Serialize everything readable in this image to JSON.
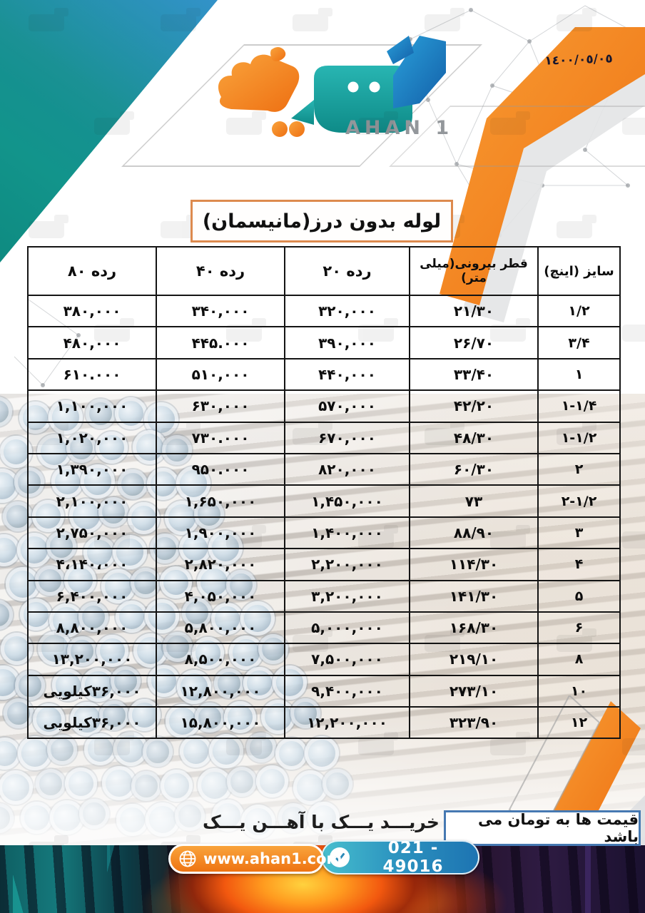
{
  "date": "١٤٠٠/٠٥/٠٥",
  "logo": {
    "brand_fa": "آهن یک",
    "brand_en": "AHAN 1"
  },
  "title": "لوله بدون درز(مانیسمان)",
  "table": {
    "columns": [
      "سایز (اینچ)",
      "قطر بیرونی(میلی متر)",
      "رده ۲۰",
      "رده ۴۰",
      "رده ۸۰"
    ],
    "rows": [
      [
        "۱/۲",
        "۲۱/۳۰",
        "۳۲۰,۰۰۰",
        "۳۴۰,۰۰۰",
        "۳۸۰,۰۰۰"
      ],
      [
        "۳/۴",
        "۲۶/۷۰",
        "۳۹۰,۰۰۰",
        "۴۴۵.۰۰۰",
        "۴۸۰,۰۰۰"
      ],
      [
        "۱",
        "۳۳/۴۰",
        "۴۴۰,۰۰۰",
        "۵۱۰,۰۰۰",
        "۶۱۰.۰۰۰"
      ],
      [
        "۱-۱/۴",
        "۴۲/۲۰",
        "۵۷۰,۰۰۰",
        "۶۳۰,۰۰۰",
        "۱,۱۰۰,۰۰۰"
      ],
      [
        "۱-۱/۲",
        "۴۸/۳۰",
        "۶۷۰,۰۰۰",
        "۷۳۰.۰۰۰",
        "۱,۰۲۰,۰۰۰"
      ],
      [
        "۲",
        "۶۰/۳۰",
        "۸۲۰,۰۰۰",
        "۹۵۰.۰۰۰",
        "۱,۳۹۰,۰۰۰"
      ],
      [
        "۲-۱/۲",
        "۷۳",
        "۱,۴۵۰,۰۰۰",
        "۱,۶۵۰,۰۰۰",
        "۲,۱۰۰,۰۰۰"
      ],
      [
        "۳",
        "۸۸/۹۰",
        "۱,۴۰۰,۰۰۰",
        "۱,۹۰۰,۰۰۰",
        "۲,۷۵۰,۰۰۰"
      ],
      [
        "۴",
        "۱۱۴/۳۰",
        "۲,۲۰۰,۰۰۰",
        "۲,۸۲۰,۰۰۰",
        "۴،۱۴۰،۰۰۰"
      ],
      [
        "۵",
        "۱۴۱/۳۰",
        "۳,۲۰۰,۰۰۰",
        "۴,۰۵۰,۰۰۰",
        "۶,۴۰۰,۰۰۰"
      ],
      [
        "۶",
        "۱۶۸/۳۰",
        "۵,۰۰۰,۰۰۰",
        "۵,۸۰۰,۰۰۰",
        "۸,۸۰۰,۰۰۰"
      ],
      [
        "۸",
        "۲۱۹/۱۰",
        "۷,۵۰۰,۰۰۰",
        "۸,۵۰۰,۰۰۰",
        "۱۳,۲۰۰,۰۰۰"
      ],
      [
        "۱۰",
        "۲۷۳/۱۰",
        "۹,۴۰۰,۰۰۰",
        "۱۲,۸۰۰,۰۰۰",
        "۳۶,۰۰۰کیلویی"
      ],
      [
        "۱۲",
        "۳۲۳/۹۰",
        "۱۲,۲۰۰,۰۰۰",
        "۱۵,۸۰۰,۰۰۰",
        "۳۶,۰۰۰کیلویی"
      ]
    ]
  },
  "footer": {
    "slogan": "خریـــد یـــک با آهـــن یـــک",
    "price_note": "قیمت ها به تومان می باشد",
    "website": "www.ahan1.com",
    "phone": "021 - 49016",
    "website_icon": "globe-icon",
    "phone_icon": "check-icon"
  },
  "colors": {
    "orange": "#f47b20",
    "teal": "#12948b",
    "blue": "#1b82c6",
    "table_border": "#141414",
    "title_box_border": "#dd8a4e",
    "price_box_border": "#4679b2"
  }
}
